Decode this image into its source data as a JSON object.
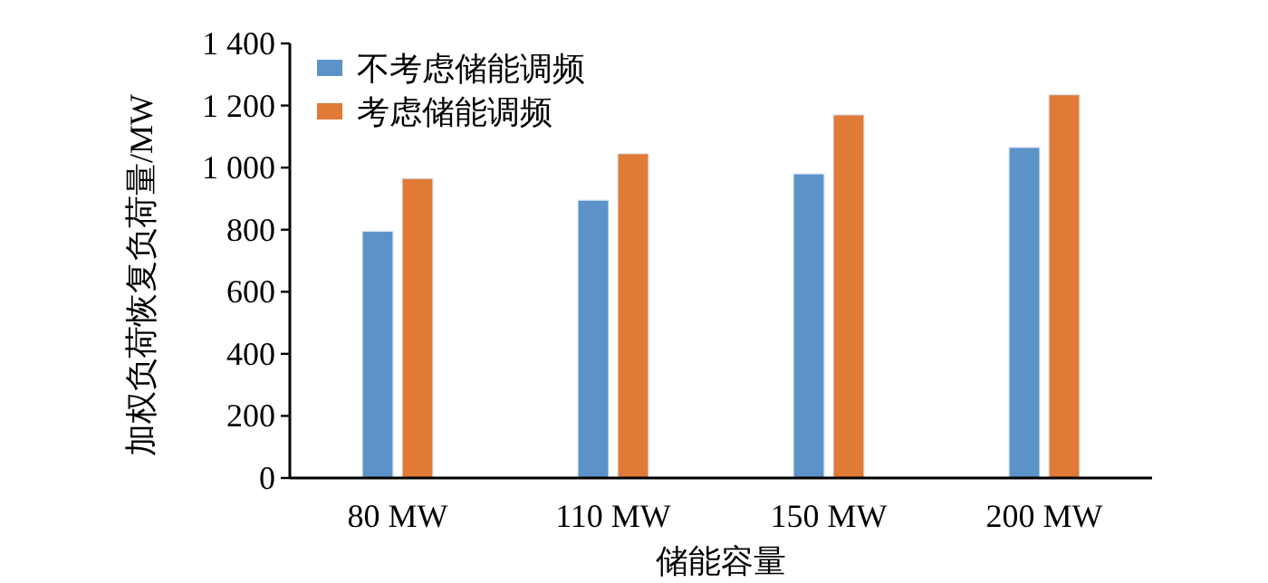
{
  "chart_data": {
    "type": "bar",
    "xlabel": "储能容量",
    "ylabel": "加权负荷恢复负荷量/MW",
    "categories": [
      "80 MW",
      "110 MW",
      "150 MW",
      "200 MW"
    ],
    "series": [
      {
        "name": "不考虑储能调频",
        "color": "#5b93c9",
        "values": [
          795,
          895,
          980,
          1065
        ]
      },
      {
        "name": "考虑储能调频",
        "color": "#e07a36",
        "values": [
          965,
          1045,
          1170,
          1235
        ]
      }
    ],
    "ylim": [
      0,
      1400
    ],
    "yticks": [
      0,
      200,
      400,
      600,
      800,
      {
        "value": 1000,
        "label": "1 000"
      },
      {
        "value": 1200,
        "label": "1 200"
      },
      {
        "value": 1400,
        "label": "1 400"
      }
    ],
    "grid": false,
    "legend": "top left"
  }
}
